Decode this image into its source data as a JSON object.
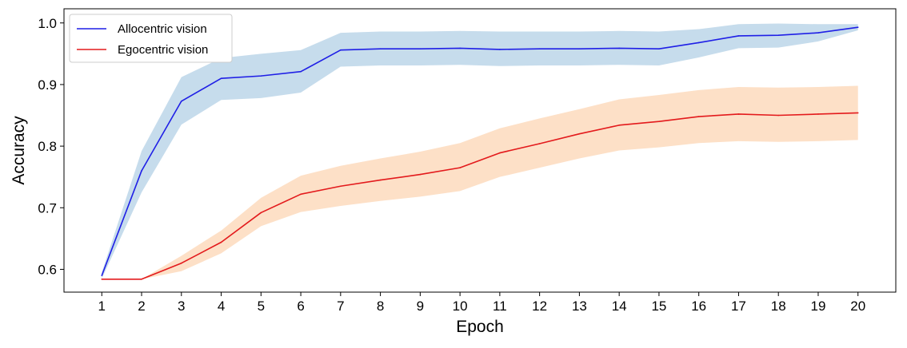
{
  "chart_data": {
    "type": "line",
    "title": "",
    "xlabel": "Epoch",
    "ylabel": "Accuracy",
    "xlim": [
      0.05,
      20.95
    ],
    "ylim": [
      0.563,
      1.023
    ],
    "x": [
      1,
      2,
      3,
      4,
      5,
      6,
      7,
      8,
      9,
      10,
      11,
      12,
      13,
      14,
      15,
      16,
      17,
      18,
      19,
      20
    ],
    "xticks": [
      "1",
      "2",
      "3",
      "4",
      "5",
      "6",
      "7",
      "8",
      "9",
      "10",
      "11",
      "12",
      "13",
      "14",
      "15",
      "16",
      "17",
      "18",
      "19",
      "20"
    ],
    "yticks": [
      {
        "value": 0.6,
        "label": "0.6"
      },
      {
        "value": 0.7,
        "label": "0.7"
      },
      {
        "value": 0.8,
        "label": "0.8"
      },
      {
        "value": 0.9,
        "label": "0.9"
      },
      {
        "value": 1.0,
        "label": "1.0"
      }
    ],
    "grid": false,
    "legend_position": "top-left",
    "series": [
      {
        "name": "Allocentric vision",
        "line_color": "#1f1fe6",
        "band_color": "#c6dcec",
        "values": [
          0.59,
          0.76,
          0.873,
          0.91,
          0.914,
          0.921,
          0.956,
          0.958,
          0.958,
          0.959,
          0.957,
          0.958,
          0.958,
          0.959,
          0.958,
          0.968,
          0.979,
          0.98,
          0.984,
          0.993
        ],
        "lower": [
          0.585,
          0.725,
          0.835,
          0.875,
          0.878,
          0.887,
          0.929,
          0.931,
          0.931,
          0.932,
          0.93,
          0.931,
          0.931,
          0.932,
          0.931,
          0.944,
          0.959,
          0.96,
          0.97,
          0.988
        ],
        "upper": [
          0.595,
          0.792,
          0.912,
          0.943,
          0.95,
          0.956,
          0.984,
          0.986,
          0.986,
          0.987,
          0.986,
          0.986,
          0.986,
          0.987,
          0.986,
          0.99,
          0.998,
          0.999,
          0.998,
          0.998
        ]
      },
      {
        "name": "Egocentric vision",
        "line_color": "#e31a1c",
        "band_color": "#fde0c7",
        "values": [
          0.584,
          0.584,
          0.61,
          0.644,
          0.692,
          0.722,
          0.735,
          0.745,
          0.754,
          0.765,
          0.789,
          0.804,
          0.82,
          0.834,
          0.84,
          0.848,
          0.852,
          0.85,
          0.852,
          0.854
        ],
        "lower": [
          0.584,
          0.584,
          0.597,
          0.626,
          0.67,
          0.693,
          0.703,
          0.711,
          0.718,
          0.727,
          0.75,
          0.765,
          0.78,
          0.793,
          0.798,
          0.805,
          0.808,
          0.807,
          0.808,
          0.81
        ],
        "upper": [
          0.584,
          0.584,
          0.622,
          0.663,
          0.716,
          0.752,
          0.768,
          0.78,
          0.791,
          0.805,
          0.829,
          0.845,
          0.86,
          0.876,
          0.883,
          0.891,
          0.896,
          0.895,
          0.896,
          0.898
        ]
      }
    ]
  }
}
